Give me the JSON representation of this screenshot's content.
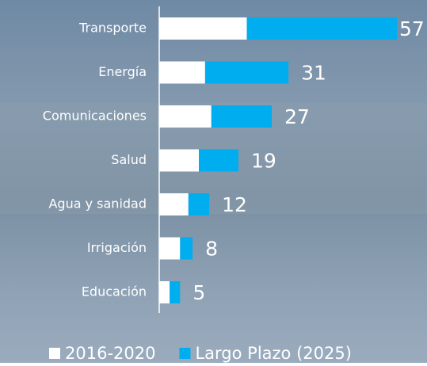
{
  "chart_data": {
    "type": "stacked-bar-horizontal",
    "categories": [
      "Transporte",
      "Energía",
      "Comunicaciones",
      "Salud",
      "Agua y sanidad",
      "Irrigación",
      "Educación"
    ],
    "series": [
      {
        "name": "2016-2020",
        "color": "#ffffff",
        "values": [
          21,
          11,
          12.5,
          9.5,
          7,
          5,
          2.5
        ]
      },
      {
        "name": "Largo Plazo (2025)",
        "color": "#00aeef",
        "values": [
          36,
          20,
          14.5,
          9.5,
          5,
          3,
          2.5
        ]
      }
    ],
    "totals": [
      57,
      31,
      27,
      19,
      12,
      8,
      5
    ],
    "xlim": [
      0,
      57
    ]
  }
}
